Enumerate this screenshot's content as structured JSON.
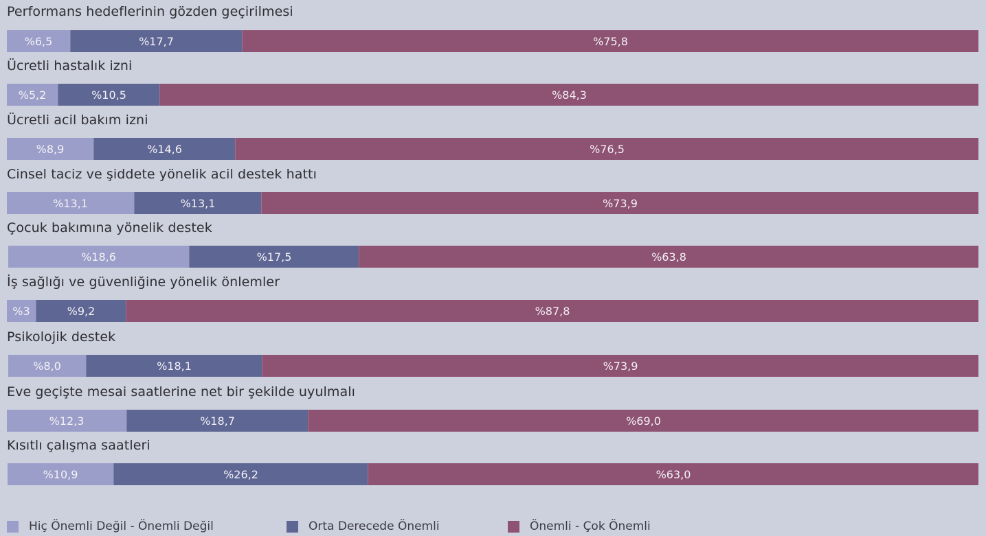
{
  "chart_data": {
    "type": "bar",
    "orientation": "horizontal",
    "stacked": true,
    "value_format": "percent-prefix-comma",
    "xlim": [
      0,
      100
    ],
    "grid": false,
    "legend_placement": "bottom-left",
    "categories": [
      "Performans hedeflerinin gözden geçirilmesi",
      "Ücretli  hastalık izni",
      "Ücretli acil bakım izni",
      "Cinsel taciz ve şiddete yönelik acil destek hattı",
      "Çocuk bakımına yönelik destek",
      "İş sağlığı ve güvenliğine yönelik önlemler",
      "Psikolojik destek",
      "Eve geçişte mesai saatlerine net bir şekilde uyulmalı",
      "Kısıtlı çalışma saatleri"
    ],
    "series": [
      {
        "name": "Hiç Önemli Değil - Önemli Değil",
        "color": "#9a9ec9",
        "values": [
          6.5,
          5.2,
          8.9,
          13.1,
          18.6,
          3,
          8.0,
          12.3,
          10.9
        ],
        "labels": [
          "%6,5",
          "%5,2",
          "%8,9",
          "%13,1",
          "%18,6",
          "%3",
          "%8,0",
          "%12,3",
          "%10,9"
        ]
      },
      {
        "name": "Orta Derecede Önemli",
        "color": "#5e6694",
        "values": [
          17.7,
          10.5,
          14.6,
          13.1,
          17.5,
          9.2,
          18.1,
          18.7,
          26.2
        ],
        "labels": [
          "%17,7",
          "%10,5",
          "%14,6",
          "%13,1",
          "%17,5",
          "%9,2",
          "%18,1",
          "%18,7",
          "%26,2"
        ]
      },
      {
        "name": "Önemli - Çok Önemli",
        "color": "#8e5272",
        "values": [
          75.8,
          84.3,
          76.5,
          73.9,
          63.8,
          87.8,
          73.9,
          69.0,
          63.0
        ],
        "labels": [
          "%75,8",
          "%84,3",
          "%76,5",
          "%73,9",
          "%63,8",
          "%87,8",
          "%73,9",
          "%69,0",
          "%63,0"
        ]
      }
    ]
  }
}
